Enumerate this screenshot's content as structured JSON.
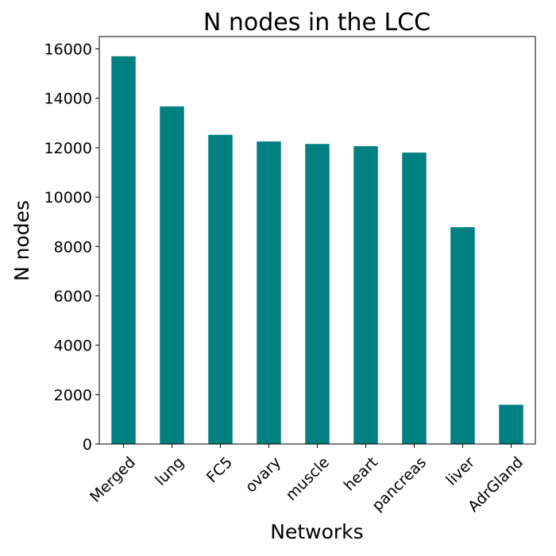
{
  "chart_data": {
    "type": "bar",
    "title": "N nodes in the LCC",
    "xlabel": "Networks",
    "ylabel": "N nodes",
    "categories": [
      "Merged",
      "lung",
      "FC5",
      "ovary",
      "muscle",
      "heart",
      "pancreas",
      "liver",
      "AdrGland"
    ],
    "values": [
      15700,
      13670,
      12520,
      12250,
      12150,
      12060,
      11800,
      8780,
      1590
    ],
    "ylim": [
      0,
      16500
    ],
    "yticks": [
      0,
      2000,
      4000,
      6000,
      8000,
      10000,
      12000,
      14000,
      16000
    ],
    "bar_color": "#008080",
    "grid": false,
    "legend": "none"
  }
}
